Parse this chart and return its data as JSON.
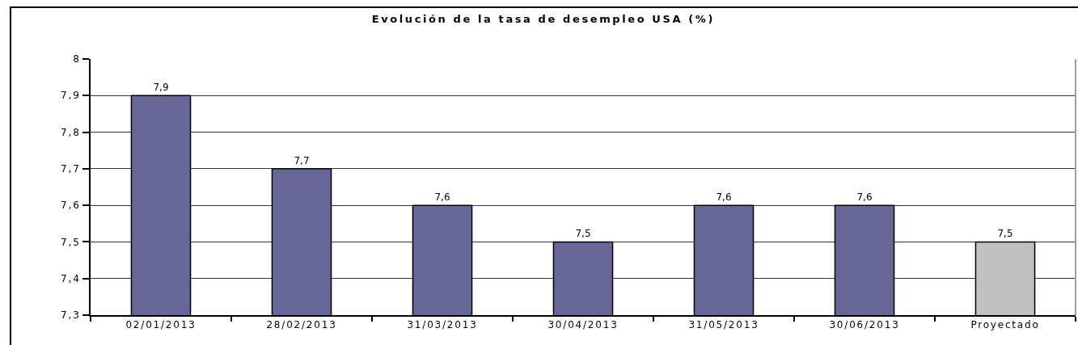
{
  "chart_data": {
    "type": "bar",
    "title": "Evolución de la tasa de desempleo USA (%)",
    "categories": [
      "02/01/2013",
      "28/02/2013",
      "31/03/2013",
      "30/04/2013",
      "31/05/2013",
      "30/06/2013",
      "Proyectado"
    ],
    "values": [
      7.9,
      7.7,
      7.6,
      7.5,
      7.6,
      7.6,
      7.5
    ],
    "colors": [
      "#666699",
      "#666699",
      "#666699",
      "#666699",
      "#666699",
      "#666699",
      "#c0c0c0"
    ],
    "value_labels": [
      "7,9",
      "7,7",
      "7,6",
      "7,5",
      "7,6",
      "7,6",
      "7,5"
    ],
    "ylim": [
      7.3,
      8
    ],
    "yticks": [
      {
        "value": 7.3,
        "label": "7,3"
      },
      {
        "value": 7.4,
        "label": "7,4"
      },
      {
        "value": 7.5,
        "label": "7,5"
      },
      {
        "value": 7.6,
        "label": "7,6"
      },
      {
        "value": 7.7,
        "label": "7,7"
      },
      {
        "value": 7.8,
        "label": "7,8"
      },
      {
        "value": 7.9,
        "label": "7,9"
      },
      8
    ],
    "grid": "y"
  }
}
